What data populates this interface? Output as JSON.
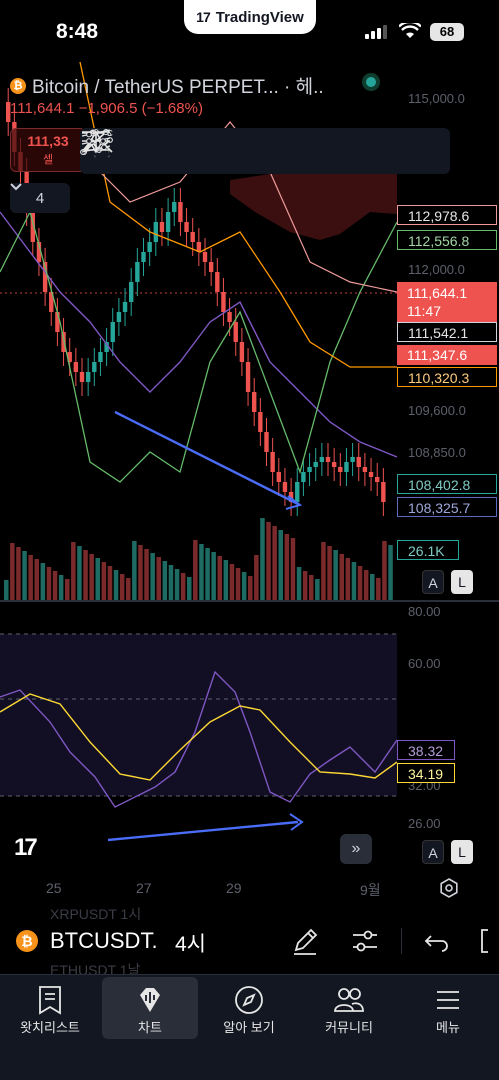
{
  "status": {
    "time": "8:48",
    "battery": "68"
  },
  "app": {
    "name": "TradingView",
    "logo": "17"
  },
  "chart": {
    "symbol_title": "Bitcoin / TetherUS PERPET... · 헤..",
    "coin_glyph": "₿",
    "last_price": "111,644.1",
    "change": "−1,906.5 (−1.68%)",
    "sell_price": "111,33",
    "sell_label": "셀",
    "collapse_count": "4",
    "axis_labels": [
      "115,000.0",
      "112,000.0",
      "109,600.0",
      "108,850.0"
    ],
    "price_labels": {
      "p1": "112,978.6",
      "p2": "112,556.8",
      "p3_price": "111,644.1",
      "p3_timer": "11:47",
      "p4": "111,542.1",
      "p5": "111,347.6",
      "p6": "110,320.3",
      "p7": "108,402.8",
      "p8": "108,325.7",
      "volume": "26.1K"
    },
    "auto_label": "A",
    "log_label": "L",
    "colors": {
      "up": "#26a69a",
      "down": "#ef5350",
      "cloud": "#3b0f10"
    }
  },
  "toolbar_icons": [
    "pitchfork-icon",
    "horizontal-ray-icon",
    "elliott-wave-icon",
    "trend-line-icon",
    "abc-pattern-icon",
    "parallel-channel-icon",
    "regression-icon"
  ],
  "indicator": {
    "axis_labels": [
      "80.00",
      "60.00",
      "32.00",
      "26.00"
    ],
    "purple_value": "38.32",
    "yellow_value": "34.19",
    "auto_label": "A",
    "log_label": "L",
    "watermark": "17"
  },
  "time_axis": [
    "25",
    "27",
    "29",
    "9월"
  ],
  "symbol_bar": {
    "ghost_top": "XRPUSDT   1시",
    "symbol": "BTCUSDT.",
    "interval": "4시",
    "ghost_bottom": "ETHUSDT   1날"
  },
  "nav": [
    {
      "label": "왓치리스트",
      "icon": "watchlist-icon"
    },
    {
      "label": "차트",
      "icon": "chart-icon"
    },
    {
      "label": "알아 보기",
      "icon": "compass-icon"
    },
    {
      "label": "커뮤니티",
      "icon": "community-icon"
    },
    {
      "label": "메뉴",
      "icon": "menu-icon"
    }
  ]
}
